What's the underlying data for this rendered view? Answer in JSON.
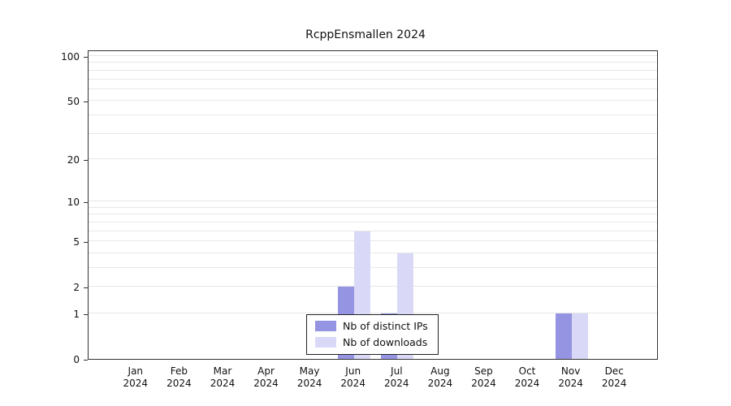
{
  "title": "RcppEnsmallen 2024",
  "chart_data": {
    "type": "bar",
    "title": "RcppEnsmallen 2024",
    "xlabel": "",
    "ylabel": "",
    "categories": [
      "Jan 2024",
      "Feb 2024",
      "Mar 2024",
      "Apr 2024",
      "May 2024",
      "Jun 2024",
      "Jul 2024",
      "Aug 2024",
      "Sep 2024",
      "Oct 2024",
      "Nov 2024",
      "Dec 2024"
    ],
    "series": [
      {
        "name": "Nb of distinct IPs",
        "color": "#9494e2",
        "values": [
          0,
          0,
          0,
          0,
          0,
          2,
          1,
          0,
          0,
          0,
          1,
          0
        ]
      },
      {
        "name": "Nb of downloads",
        "color": "#d9d9f7",
        "values": [
          0,
          0,
          0,
          0,
          0,
          6,
          4,
          0,
          0,
          0,
          1,
          0
        ]
      }
    ],
    "y_scale": "log1p",
    "y_ticks": [
      0,
      1,
      2,
      5,
      10,
      20,
      50,
      100
    ],
    "gridline_values": [
      1,
      2,
      3,
      4,
      5,
      6,
      7,
      8,
      9,
      10,
      20,
      30,
      40,
      50,
      60,
      70,
      80,
      90,
      100
    ],
    "ylim": [
      0,
      100
    ],
    "grid": "horizontal",
    "legend_position": "bottom-center"
  }
}
